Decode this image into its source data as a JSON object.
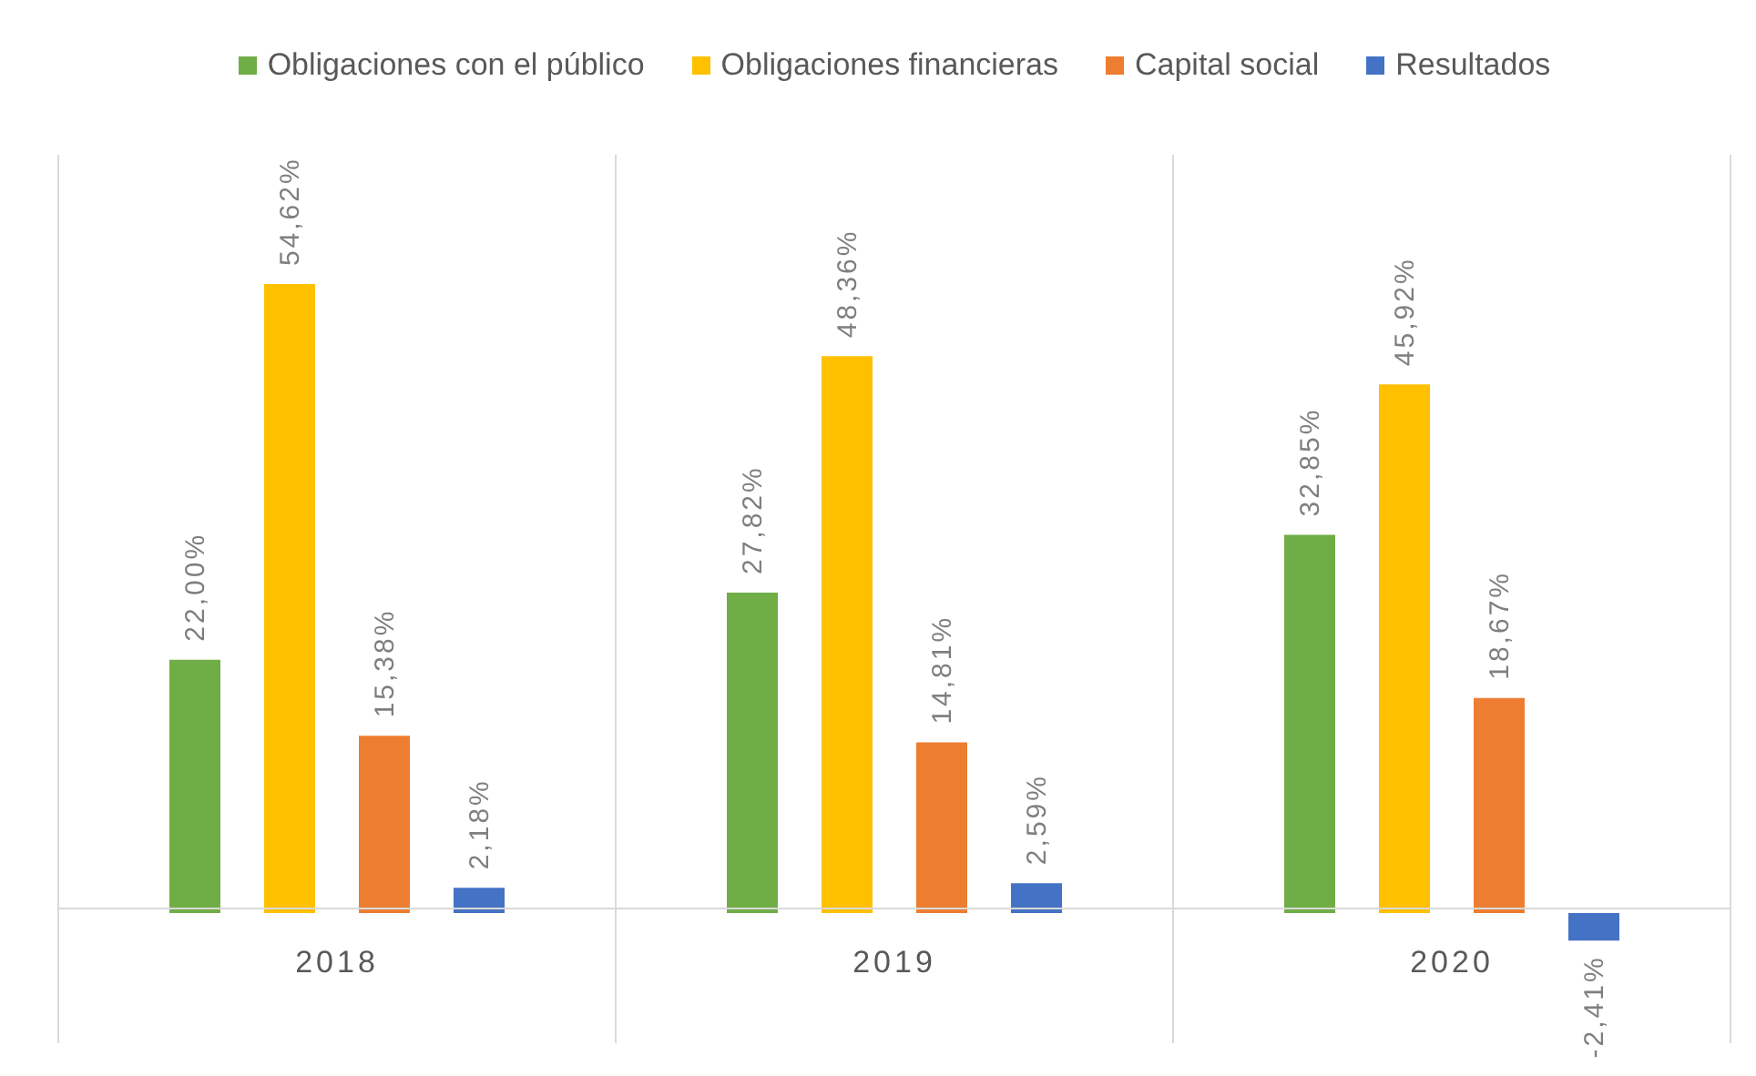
{
  "chart_data": {
    "type": "bar",
    "categories": [
      "2018",
      "2019",
      "2020"
    ],
    "series": [
      {
        "name": "Obligaciones con el público",
        "color": "#70ad47",
        "values": [
          22.0,
          27.82,
          32.85
        ],
        "value_labels": [
          "22,00%",
          "27,82%",
          "32,85%"
        ]
      },
      {
        "name": "Obligaciones financieras",
        "color": "#ffc000",
        "values": [
          54.62,
          48.36,
          45.92
        ],
        "value_labels": [
          "54,62%",
          "48,36%",
          "45,92%"
        ]
      },
      {
        "name": "Capital social",
        "color": "#ed7d31",
        "values": [
          15.38,
          14.81,
          18.67
        ],
        "value_labels": [
          "15,38%",
          "14,81%",
          "18,67%"
        ]
      },
      {
        "name": "Resultados",
        "color": "#4472c4",
        "values": [
          2.18,
          2.59,
          -2.41
        ],
        "value_labels": [
          "2,18%",
          "2,59%",
          "-2,41%"
        ]
      }
    ],
    "legend": "top"
  }
}
